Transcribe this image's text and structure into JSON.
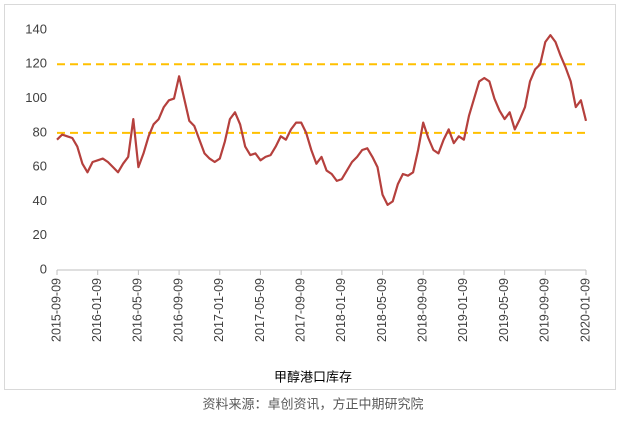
{
  "chart_data": {
    "type": "line",
    "title": "甲醇港口库存",
    "source": "资料来源：卓创资讯，方正中期研究院",
    "categories": [
      "2015-09-09",
      null,
      null,
      null,
      null,
      null,
      null,
      null,
      "2016-01-09",
      null,
      null,
      null,
      null,
      null,
      null,
      null,
      "2016-05-09",
      null,
      null,
      null,
      null,
      null,
      null,
      null,
      "2016-09-09",
      null,
      null,
      null,
      null,
      null,
      null,
      null,
      "2017-01-09",
      null,
      null,
      null,
      null,
      null,
      null,
      null,
      "2017-05-09",
      null,
      null,
      null,
      null,
      null,
      null,
      null,
      "2017-09-09",
      null,
      null,
      null,
      null,
      null,
      null,
      null,
      "2018-01-09",
      null,
      null,
      null,
      null,
      null,
      null,
      null,
      "2018-05-09",
      null,
      null,
      null,
      null,
      null,
      null,
      null,
      "2018-09-09",
      null,
      null,
      null,
      null,
      null,
      null,
      null,
      "2019-01-09",
      null,
      null,
      null,
      null,
      null,
      null,
      null,
      "2019-05-09",
      null,
      null,
      null,
      null,
      null,
      null,
      null,
      "2019-09-09",
      null,
      null,
      null,
      null,
      null,
      null,
      null,
      "2020-01-09"
    ],
    "series": [
      {
        "color": "#b5403d",
        "values": [
          76,
          79,
          78,
          77,
          72,
          62,
          57,
          63,
          64,
          65,
          63,
          60,
          57,
          62,
          66,
          88,
          60,
          68,
          78,
          85,
          88,
          95,
          99,
          100,
          113,
          100,
          87,
          84,
          76,
          68,
          65,
          63,
          65,
          75,
          88,
          92,
          85,
          72,
          67,
          68,
          64,
          66,
          67,
          72,
          78,
          76,
          82,
          86,
          86,
          80,
          70,
          62,
          66,
          58,
          56,
          52,
          53,
          58,
          63,
          66,
          70,
          71,
          66,
          60,
          44,
          38,
          40,
          50,
          56,
          55,
          57,
          70,
          86,
          77,
          70,
          68,
          76,
          82,
          74,
          78,
          76,
          90,
          100,
          110,
          112,
          110,
          100,
          93,
          88,
          92,
          82,
          88,
          95,
          110,
          117,
          120,
          133,
          137,
          133,
          125,
          118,
          110,
          95,
          99,
          87
        ]
      }
    ],
    "reference_lines": [
      80,
      120
    ],
    "reference_color": "#ffc000",
    "ylim": [
      0,
      140
    ],
    "yticks": [
      0,
      20,
      40,
      60,
      80,
      100,
      120,
      140
    ],
    "grid": false
  }
}
